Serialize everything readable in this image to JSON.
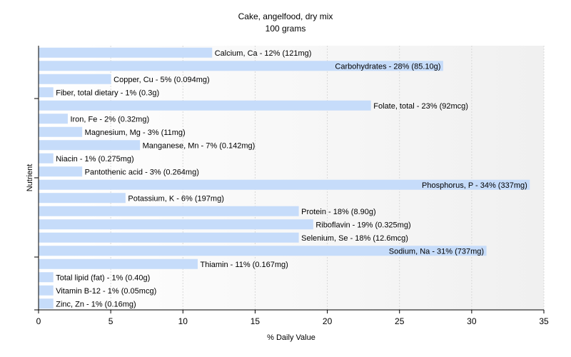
{
  "chart_data": {
    "type": "bar",
    "orientation": "horizontal",
    "title": "Cake, angelfood, dry mix",
    "subtitle": "100 grams",
    "xlabel": "% Daily Value",
    "ylabel": "Nutrient",
    "xlim": [
      0,
      35
    ],
    "x_ticks": [
      0,
      5,
      10,
      15,
      20,
      25,
      30,
      35
    ],
    "grid": "vertical dashed",
    "bar_color": "#c6dcfa",
    "categories": [
      "Calcium, Ca",
      "Carbohydrates",
      "Copper, Cu",
      "Fiber, total dietary",
      "Folate, total",
      "Iron, Fe",
      "Magnesium, Mg",
      "Manganese, Mn",
      "Niacin",
      "Pantothenic acid",
      "Phosphorus, P",
      "Potassium, K",
      "Protein",
      "Riboflavin",
      "Selenium, Se",
      "Sodium, Na",
      "Thiamin",
      "Total lipid (fat)",
      "Vitamin B-12",
      "Zinc, Zn"
    ],
    "values": [
      12,
      28,
      5,
      1,
      23,
      2,
      3,
      7,
      1,
      3,
      34,
      6,
      18,
      19,
      18,
      31,
      11,
      1,
      1,
      1
    ],
    "labels": [
      "Calcium, Ca - 12% (121mg)",
      "Carbohydrates - 28% (85.10g)",
      "Copper, Cu - 5% (0.094mg)",
      "Fiber, total dietary - 1% (0.3g)",
      "Folate, total - 23% (92mcg)",
      "Iron, Fe - 2% (0.32mg)",
      "Magnesium, Mg - 3% (11mg)",
      "Manganese, Mn - 7% (0.142mg)",
      "Niacin - 1% (0.275mg)",
      "Pantothenic acid - 3% (0.264mg)",
      "Phosphorus, P - 34% (337mg)",
      "Potassium, K - 6% (197mg)",
      "Protein - 18% (8.90g)",
      "Riboflavin - 19% (0.325mg)",
      "Selenium, Se - 18% (12.6mcg)",
      "Sodium, Na - 31% (737mg)",
      "Thiamin - 11% (0.167mg)",
      "Total lipid (fat) - 1% (0.40g)",
      "Vitamin B-12 - 1% (0.05mcg)",
      "Zinc, Zn - 1% (0.16mg)"
    ]
  }
}
